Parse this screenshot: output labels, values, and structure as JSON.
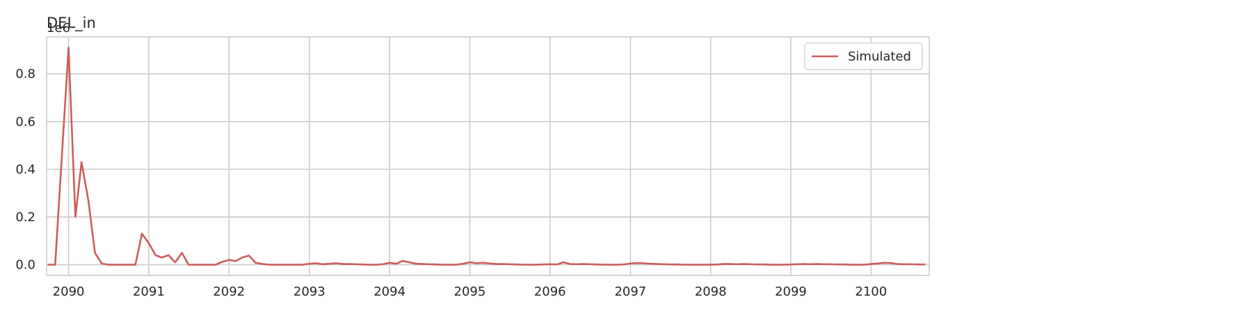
{
  "chart_data": {
    "type": "line",
    "title": "DEL_in",
    "xlabel": "",
    "ylabel": "",
    "y_offset_text": "1e6",
    "x_date_range": [
      "2089-10",
      "2100-09"
    ],
    "xlim": [
      "2089-09-23",
      "2100-09-23"
    ],
    "ylim": [
      -0.045,
      0.955
    ],
    "y_ticks": [
      0.0,
      0.2,
      0.4,
      0.6,
      0.8
    ],
    "y_tick_labels": [
      "0.0",
      "0.2",
      "0.4",
      "0.6",
      "0.8"
    ],
    "x_ticks": [
      "2090-01-01",
      "2091-01-01",
      "2092-01-01",
      "2093-01-01",
      "2094-01-01",
      "2095-01-01",
      "2096-01-01",
      "2097-01-01",
      "2098-01-01",
      "2099-01-01",
      "2100-01-01"
    ],
    "x_tick_labels": [
      "2090",
      "2091",
      "2092",
      "2093",
      "2094",
      "2095",
      "2096",
      "2097",
      "2098",
      "2099",
      "2100"
    ],
    "grid": true,
    "legend": {
      "placement": "top-right"
    },
    "series": [
      {
        "name": "Simulated",
        "color": "#cd5c5c",
        "values": [
          0.0,
          0.0,
          0.45,
          0.91,
          0.2,
          0.43,
          0.27,
          0.05,
          0.005,
          0.0,
          0.0,
          0.0,
          0.0,
          0.0,
          0.13,
          0.09,
          0.04,
          0.03,
          0.04,
          0.01,
          0.05,
          0.0,
          0.0,
          0.0,
          0.0,
          0.0,
          0.012,
          0.02,
          0.015,
          0.03,
          0.038,
          0.008,
          0.003,
          0.0,
          0.0,
          0.0,
          0.0,
          0.0,
          0.0,
          0.004,
          0.006,
          0.002,
          0.004,
          0.006,
          0.003,
          0.003,
          0.002,
          0.001,
          0.0,
          0.0,
          0.002,
          0.008,
          0.004,
          0.016,
          0.01,
          0.004,
          0.003,
          0.002,
          0.001,
          0.0,
          0.0,
          0.0,
          0.004,
          0.01,
          0.006,
          0.008,
          0.005,
          0.003,
          0.003,
          0.002,
          0.001,
          0.0,
          0.0,
          0.0,
          0.001,
          0.002,
          0.001,
          0.01,
          0.003,
          0.002,
          0.003,
          0.002,
          0.001,
          0.0,
          0.0,
          0.0,
          0.001,
          0.005,
          0.007,
          0.006,
          0.004,
          0.003,
          0.002,
          0.001,
          0.001,
          0.0,
          0.0,
          0.0,
          0.0,
          0.0,
          0.001,
          0.003,
          0.003,
          0.002,
          0.003,
          0.002,
          0.001,
          0.001,
          0.0,
          0.0,
          0.0,
          0.001,
          0.002,
          0.003,
          0.002,
          0.003,
          0.002,
          0.002,
          0.001,
          0.001,
          0.0,
          0.0,
          0.0,
          0.003,
          0.005,
          0.008,
          0.007,
          0.003,
          0.002,
          0.002,
          0.001,
          0.001
        ]
      }
    ]
  }
}
